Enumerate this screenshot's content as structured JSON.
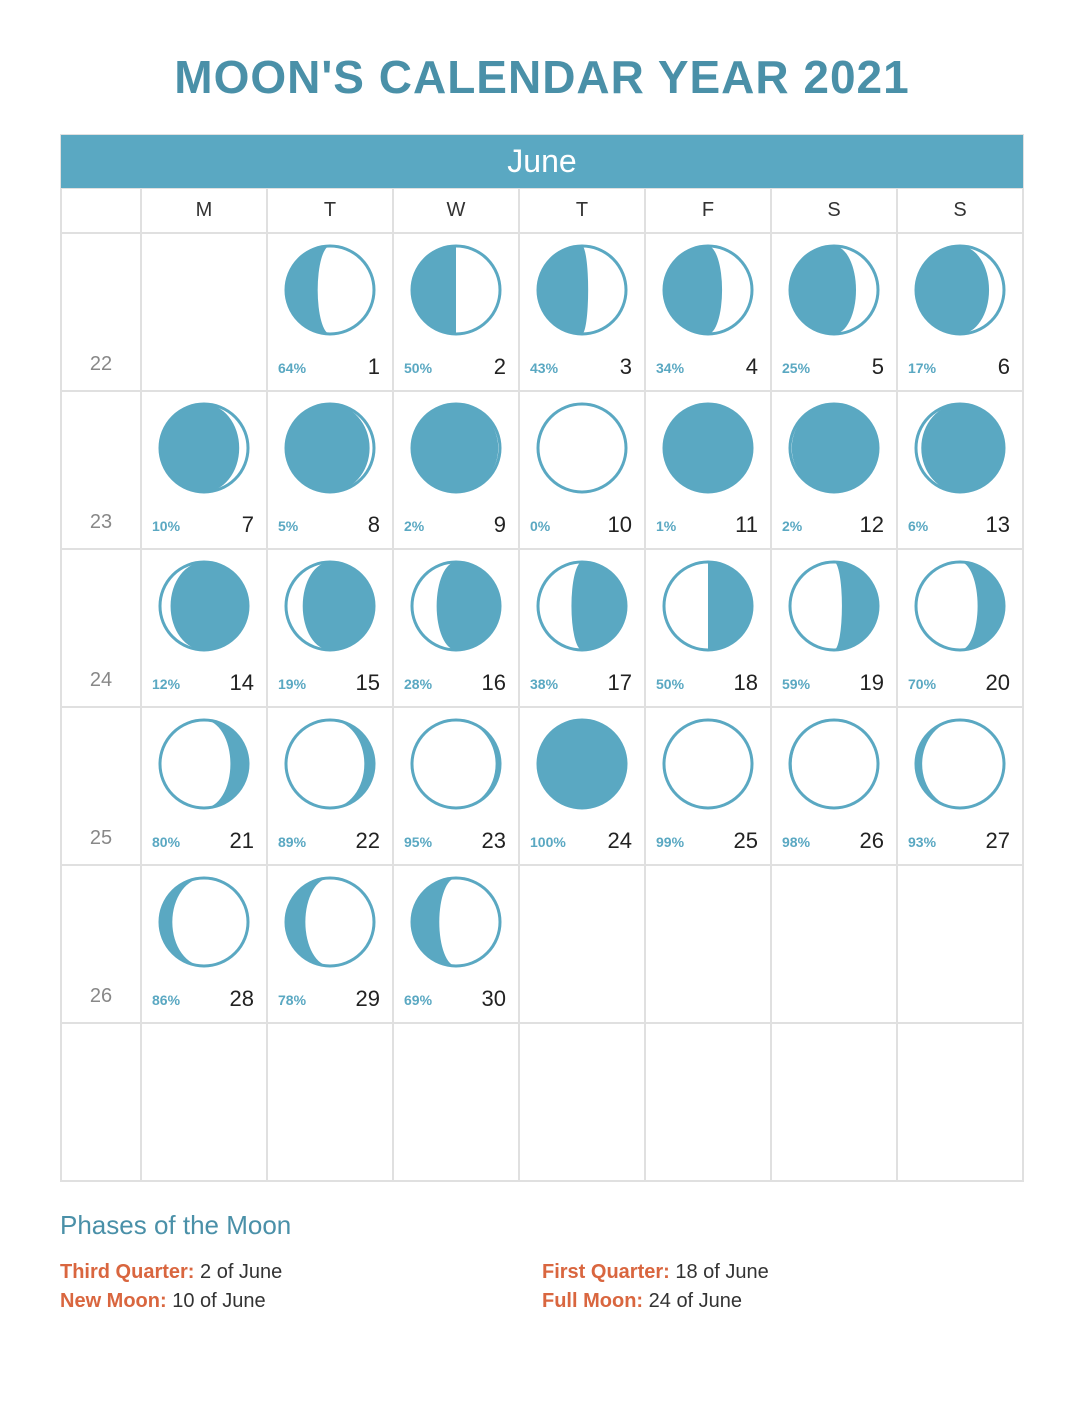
{
  "title": "MOON'S CALENDAR YEAR 2021",
  "month": "June",
  "colors": {
    "accent": "#5aa8c2",
    "accent_text": "#ffffff",
    "title_color": "#4a90a8",
    "border": "#e0e0e0",
    "weeknum": "#888888",
    "daynum": "#222222",
    "legend_key": "#d9663f"
  },
  "moon": {
    "radius": 44,
    "stroke_width": 3
  },
  "day_headers": [
    "M",
    "T",
    "W",
    "T",
    "F",
    "S",
    "S"
  ],
  "weeks": [
    {
      "wk": "22",
      "days": [
        {
          "blank": true
        },
        {
          "n": 1,
          "pct": "64%",
          "lit": 0.64,
          "waning": true
        },
        {
          "n": 2,
          "pct": "50%",
          "lit": 0.5,
          "waning": true
        },
        {
          "n": 3,
          "pct": "43%",
          "lit": 0.43,
          "waning": true
        },
        {
          "n": 4,
          "pct": "34%",
          "lit": 0.34,
          "waning": true
        },
        {
          "n": 5,
          "pct": "25%",
          "lit": 0.25,
          "waning": true
        },
        {
          "n": 6,
          "pct": "17%",
          "lit": 0.17,
          "waning": true
        }
      ]
    },
    {
      "wk": "23",
      "days": [
        {
          "n": 7,
          "pct": "10%",
          "lit": 0.1,
          "waning": true
        },
        {
          "n": 8,
          "pct": "5%",
          "lit": 0.05,
          "waning": true
        },
        {
          "n": 9,
          "pct": "2%",
          "lit": 0.02,
          "waning": true
        },
        {
          "n": 10,
          "pct": "0%",
          "lit": 0.0,
          "waning": true
        },
        {
          "n": 11,
          "pct": "1%",
          "lit": 0.01,
          "waning": false
        },
        {
          "n": 12,
          "pct": "2%",
          "lit": 0.02,
          "waning": false
        },
        {
          "n": 13,
          "pct": "6%",
          "lit": 0.06,
          "waning": false
        }
      ]
    },
    {
      "wk": "24",
      "days": [
        {
          "n": 14,
          "pct": "12%",
          "lit": 0.12,
          "waning": false
        },
        {
          "n": 15,
          "pct": "19%",
          "lit": 0.19,
          "waning": false
        },
        {
          "n": 16,
          "pct": "28%",
          "lit": 0.28,
          "waning": false
        },
        {
          "n": 17,
          "pct": "38%",
          "lit": 0.38,
          "waning": false
        },
        {
          "n": 18,
          "pct": "50%",
          "lit": 0.5,
          "waning": false
        },
        {
          "n": 19,
          "pct": "59%",
          "lit": 0.59,
          "waning": false
        },
        {
          "n": 20,
          "pct": "70%",
          "lit": 0.7,
          "waning": false
        }
      ]
    },
    {
      "wk": "25",
      "days": [
        {
          "n": 21,
          "pct": "80%",
          "lit": 0.8,
          "waning": false
        },
        {
          "n": 22,
          "pct": "89%",
          "lit": 0.89,
          "waning": false
        },
        {
          "n": 23,
          "pct": "95%",
          "lit": 0.95,
          "waning": false
        },
        {
          "n": 24,
          "pct": "100%",
          "lit": 1.0,
          "waning": false
        },
        {
          "n": 25,
          "pct": "99%",
          "lit": 0.99,
          "waning": true
        },
        {
          "n": 26,
          "pct": "98%",
          "lit": 0.98,
          "waning": true
        },
        {
          "n": 27,
          "pct": "93%",
          "lit": 0.93,
          "waning": true
        }
      ]
    },
    {
      "wk": "26",
      "days": [
        {
          "n": 28,
          "pct": "86%",
          "lit": 0.86,
          "waning": true
        },
        {
          "n": 29,
          "pct": "78%",
          "lit": 0.78,
          "waning": true
        },
        {
          "n": 30,
          "pct": "69%",
          "lit": 0.69,
          "waning": true
        },
        {
          "blank": true
        },
        {
          "blank": true
        },
        {
          "blank": true
        },
        {
          "blank": true
        }
      ]
    },
    {
      "wk": "",
      "days": [
        {
          "blank": true
        },
        {
          "blank": true
        },
        {
          "blank": true
        },
        {
          "blank": true
        },
        {
          "blank": true
        },
        {
          "blank": true
        },
        {
          "blank": true
        }
      ]
    }
  ],
  "legend": {
    "title": "Phases of the Moon",
    "left": [
      {
        "k": "Third Quarter:",
        "v": " 2 of June"
      },
      {
        "k": "New Moon:",
        "v": " 10 of June"
      }
    ],
    "right": [
      {
        "k": "First Quarter:",
        "v": " 18 of June"
      },
      {
        "k": "Full Moon:",
        "v": " 24 of June"
      }
    ]
  }
}
